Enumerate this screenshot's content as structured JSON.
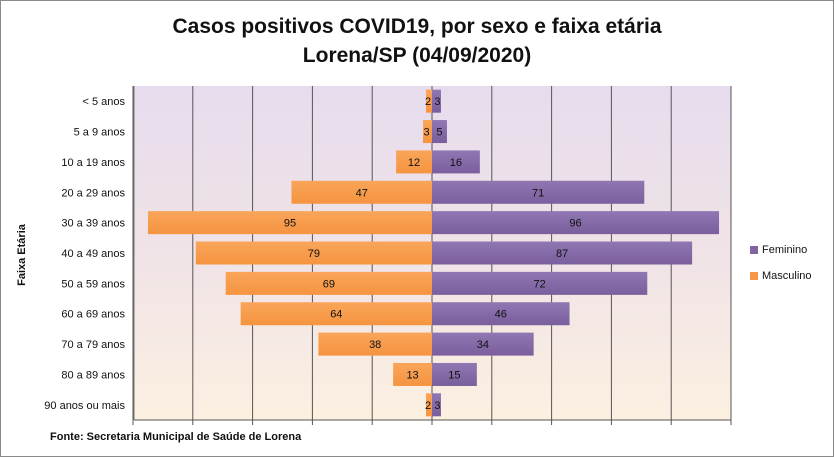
{
  "chart_data": {
    "type": "bar",
    "orientation": "horizontal-population-pyramid",
    "title_line1": "Casos positivos COVID19, por sexo e faixa etária",
    "title_line2": "Lorena/SP (04/09/2020)",
    "ylabel": "Faixa Etária",
    "source": "Fonte: Secretaria Municipal  de Saúde de Lorena",
    "categories": [
      "< 5 anos",
      "5 a 9 anos",
      "10 a 19 anos",
      "20 a 29 anos",
      "30 a 39 anos",
      "40 a 49 anos",
      "50 a 59 anos",
      "60 a 69 anos",
      "70 a 79 anos",
      "80 a 89 anos",
      "90 anos ou mais"
    ],
    "series": [
      {
        "name": "Feminino",
        "color": "#8064a2",
        "values": [
          3,
          5,
          16,
          71,
          96,
          87,
          72,
          46,
          34,
          15,
          3
        ]
      },
      {
        "name": "Masculino",
        "color": "#f79646",
        "values": [
          2,
          3,
          12,
          47,
          95,
          79,
          69,
          64,
          38,
          13,
          2
        ]
      }
    ],
    "xlim": [
      -100,
      100
    ],
    "grid": true,
    "legend_position": "right"
  }
}
